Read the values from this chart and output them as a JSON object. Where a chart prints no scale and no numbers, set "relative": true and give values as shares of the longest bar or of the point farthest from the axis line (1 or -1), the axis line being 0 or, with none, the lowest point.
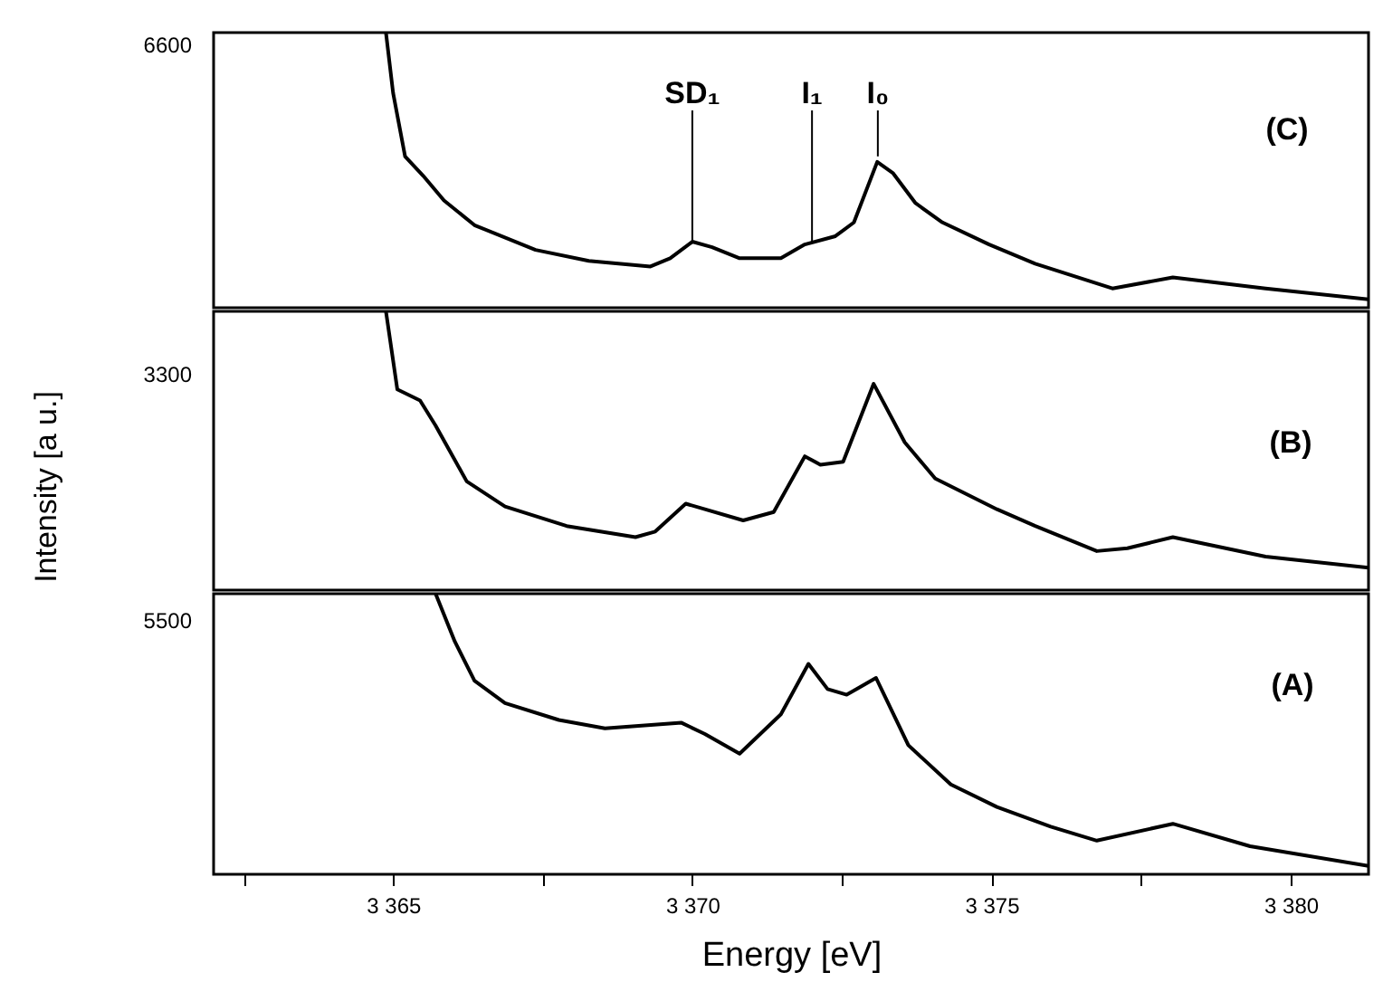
{
  "chart_data": [
    {
      "type": "line",
      "relative": true,
      "xlim": [
        3362,
        3381.3
      ],
      "x": [
        3364.88,
        3365.0,
        3365.2,
        3365.5,
        3365.85,
        3366.36,
        3367.38,
        3368.27,
        3369.3,
        3369.63,
        3370.0,
        3370.33,
        3370.79,
        3371.48,
        3371.88,
        3372.39,
        3372.7,
        3373.09,
        3373.35,
        3373.73,
        3374.18,
        3374.96,
        3375.73,
        3377.02,
        3378.03,
        3379.58,
        3381.3
      ],
      "series": [
        {
          "color": "#000000",
          "values": [
            1,
            0.78,
            0.55,
            0.48,
            0.39,
            0.3,
            0.21,
            0.17,
            0.15,
            0.18,
            0.24,
            0.22,
            0.18,
            0.18,
            0.23,
            0.26,
            0.31,
            0.53,
            0.49,
            0.38,
            0.31,
            0.23,
            0.16,
            0.07,
            0.11,
            0.07,
            0.03
          ]
        }
      ],
      "annotations": [
        "6600",
        "(C)",
        {
          "text": "SD₁",
          "x": 3370,
          "y": 0.24
        },
        {
          "text": "I₁",
          "x": 3372,
          "y": 0.24
        },
        {
          "text": "I₀",
          "x": 3373.1,
          "y": 0.55
        }
      ]
    },
    {
      "type": "line",
      "relative": true,
      "xlim": [
        3362,
        3381.3
      ],
      "ylabel": "Intensity [a u.]",
      "x": [
        3364.88,
        3365.07,
        3365.45,
        3365.71,
        3366.23,
        3366.87,
        3367.9,
        3369.05,
        3369.38,
        3369.89,
        3370.21,
        3370.85,
        3371.36,
        3371.88,
        3372.14,
        3372.52,
        3373.03,
        3373.55,
        3374.06,
        3375.09,
        3375.73,
        3376.76,
        3377.27,
        3378.03,
        3379.58,
        3381.3
      ],
      "series": [
        {
          "color": "#000000",
          "values": [
            1,
            0.72,
            0.68,
            0.59,
            0.39,
            0.3,
            0.23,
            0.19,
            0.21,
            0.31,
            0.29,
            0.25,
            0.28,
            0.48,
            0.45,
            0.46,
            0.74,
            0.53,
            0.4,
            0.29,
            0.23,
            0.14,
            0.15,
            0.19,
            0.12,
            0.08
          ]
        }
      ],
      "annotations": [
        "3300",
        "(B)"
      ]
    },
    {
      "type": "line",
      "relative": true,
      "xlim": [
        3362,
        3381.3
      ],
      "xlabel": "Energy [eV]",
      "xticks": [
        {
          "value": 3362.5,
          "label": null
        },
        {
          "value": 3365,
          "label": "3 365"
        },
        {
          "value": 3367.5,
          "label": null
        },
        {
          "value": 3370,
          "label": "3 370"
        },
        {
          "value": 3372.5,
          "label": null
        },
        {
          "value": 3375,
          "label": "3 375"
        },
        {
          "value": 3377.5,
          "label": null
        },
        {
          "value": 3380,
          "label": "3 380"
        }
      ],
      "x": [
        3365.71,
        3366.03,
        3366.36,
        3366.87,
        3367.77,
        3368.54,
        3369.82,
        3370.21,
        3370.79,
        3371.48,
        3371.94,
        3372.26,
        3372.58,
        3373.07,
        3373.61,
        3374.32,
        3375.09,
        3375.99,
        3376.76,
        3378.03,
        3379.32,
        3381.3
      ],
      "series": [
        {
          "color": "#000000",
          "values": [
            1,
            0.83,
            0.69,
            0.61,
            0.55,
            0.52,
            0.54,
            0.5,
            0.43,
            0.57,
            0.75,
            0.66,
            0.64,
            0.7,
            0.46,
            0.32,
            0.24,
            0.17,
            0.12,
            0.18,
            0.1,
            0.03
          ]
        }
      ],
      "annotations": [
        "5500",
        "(A)"
      ]
    }
  ]
}
